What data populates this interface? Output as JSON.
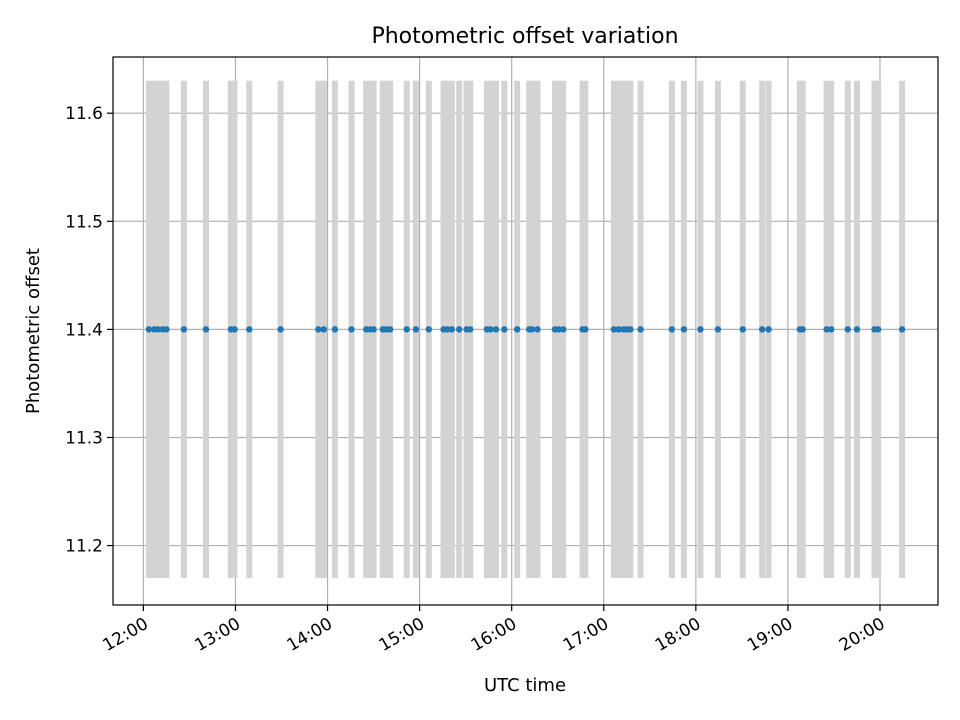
{
  "chart_data": {
    "type": "scatter",
    "title": "Photometric offset variation",
    "xlabel": "UTC time",
    "ylabel": "Photometric offset",
    "x_unit": "UTC hours",
    "xlim": [
      11.67,
      20.63
    ],
    "ylim": [
      11.145,
      11.652
    ],
    "x_ticks": [
      {
        "value": 12,
        "label": "12:00"
      },
      {
        "value": 13,
        "label": "13:00"
      },
      {
        "value": 14,
        "label": "14:00"
      },
      {
        "value": 15,
        "label": "15:00"
      },
      {
        "value": 16,
        "label": "16:00"
      },
      {
        "value": 17,
        "label": "17:00"
      },
      {
        "value": 18,
        "label": "18:00"
      },
      {
        "value": 19,
        "label": "19:00"
      },
      {
        "value": 20,
        "label": "20:00"
      }
    ],
    "y_ticks": [
      {
        "value": 11.2,
        "label": "11.2"
      },
      {
        "value": 11.3,
        "label": "11.3"
      },
      {
        "value": 11.4,
        "label": "11.4"
      },
      {
        "value": 11.5,
        "label": "11.5"
      },
      {
        "value": 11.6,
        "label": "11.6"
      }
    ],
    "grid": true,
    "error_bar_half_width": 0.23,
    "colors": {
      "points": "#1f77b4",
      "error_bars": "#d3d3d3",
      "grid": "#b0b0b0"
    },
    "points": [
      {
        "x": 12.06,
        "y": 11.4
      },
      {
        "x": 12.12,
        "y": 11.4
      },
      {
        "x": 12.16,
        "y": 11.4
      },
      {
        "x": 12.21,
        "y": 11.4
      },
      {
        "x": 12.25,
        "y": 11.4
      },
      {
        "x": 12.44,
        "y": 11.4
      },
      {
        "x": 12.68,
        "y": 11.4
      },
      {
        "x": 12.95,
        "y": 11.4
      },
      {
        "x": 12.99,
        "y": 11.4
      },
      {
        "x": 13.15,
        "y": 11.4
      },
      {
        "x": 13.49,
        "y": 11.4
      },
      {
        "x": 13.9,
        "y": 11.4
      },
      {
        "x": 13.96,
        "y": 11.4
      },
      {
        "x": 14.08,
        "y": 11.4
      },
      {
        "x": 14.26,
        "y": 11.4
      },
      {
        "x": 14.42,
        "y": 11.4
      },
      {
        "x": 14.46,
        "y": 11.4
      },
      {
        "x": 14.5,
        "y": 11.4
      },
      {
        "x": 14.6,
        "y": 11.4
      },
      {
        "x": 14.64,
        "y": 11.4
      },
      {
        "x": 14.68,
        "y": 11.4
      },
      {
        "x": 14.86,
        "y": 11.4
      },
      {
        "x": 14.96,
        "y": 11.4
      },
      {
        "x": 15.1,
        "y": 11.4
      },
      {
        "x": 15.26,
        "y": 11.4
      },
      {
        "x": 15.3,
        "y": 11.4
      },
      {
        "x": 15.35,
        "y": 11.4
      },
      {
        "x": 15.43,
        "y": 11.4
      },
      {
        "x": 15.51,
        "y": 11.4
      },
      {
        "x": 15.55,
        "y": 11.4
      },
      {
        "x": 15.73,
        "y": 11.4
      },
      {
        "x": 15.77,
        "y": 11.4
      },
      {
        "x": 15.83,
        "y": 11.4
      },
      {
        "x": 15.92,
        "y": 11.4
      },
      {
        "x": 16.06,
        "y": 11.4
      },
      {
        "x": 16.19,
        "y": 11.4
      },
      {
        "x": 16.22,
        "y": 11.4
      },
      {
        "x": 16.28,
        "y": 11.4
      },
      {
        "x": 16.47,
        "y": 11.4
      },
      {
        "x": 16.51,
        "y": 11.4
      },
      {
        "x": 16.56,
        "y": 11.4
      },
      {
        "x": 16.77,
        "y": 11.4
      },
      {
        "x": 16.8,
        "y": 11.4
      },
      {
        "x": 17.11,
        "y": 11.4
      },
      {
        "x": 17.16,
        "y": 11.4
      },
      {
        "x": 17.21,
        "y": 11.4
      },
      {
        "x": 17.25,
        "y": 11.4
      },
      {
        "x": 17.29,
        "y": 11.4
      },
      {
        "x": 17.4,
        "y": 11.4
      },
      {
        "x": 17.74,
        "y": 11.4
      },
      {
        "x": 17.87,
        "y": 11.4
      },
      {
        "x": 18.05,
        "y": 11.4
      },
      {
        "x": 18.24,
        "y": 11.4
      },
      {
        "x": 18.51,
        "y": 11.4
      },
      {
        "x": 18.72,
        "y": 11.4
      },
      {
        "x": 18.79,
        "y": 11.4
      },
      {
        "x": 19.13,
        "y": 11.4
      },
      {
        "x": 19.16,
        "y": 11.4
      },
      {
        "x": 19.42,
        "y": 11.4
      },
      {
        "x": 19.47,
        "y": 11.4
      },
      {
        "x": 19.65,
        "y": 11.4
      },
      {
        "x": 19.75,
        "y": 11.4
      },
      {
        "x": 19.94,
        "y": 11.4
      },
      {
        "x": 19.98,
        "y": 11.4
      },
      {
        "x": 20.24,
        "y": 11.4
      }
    ]
  }
}
